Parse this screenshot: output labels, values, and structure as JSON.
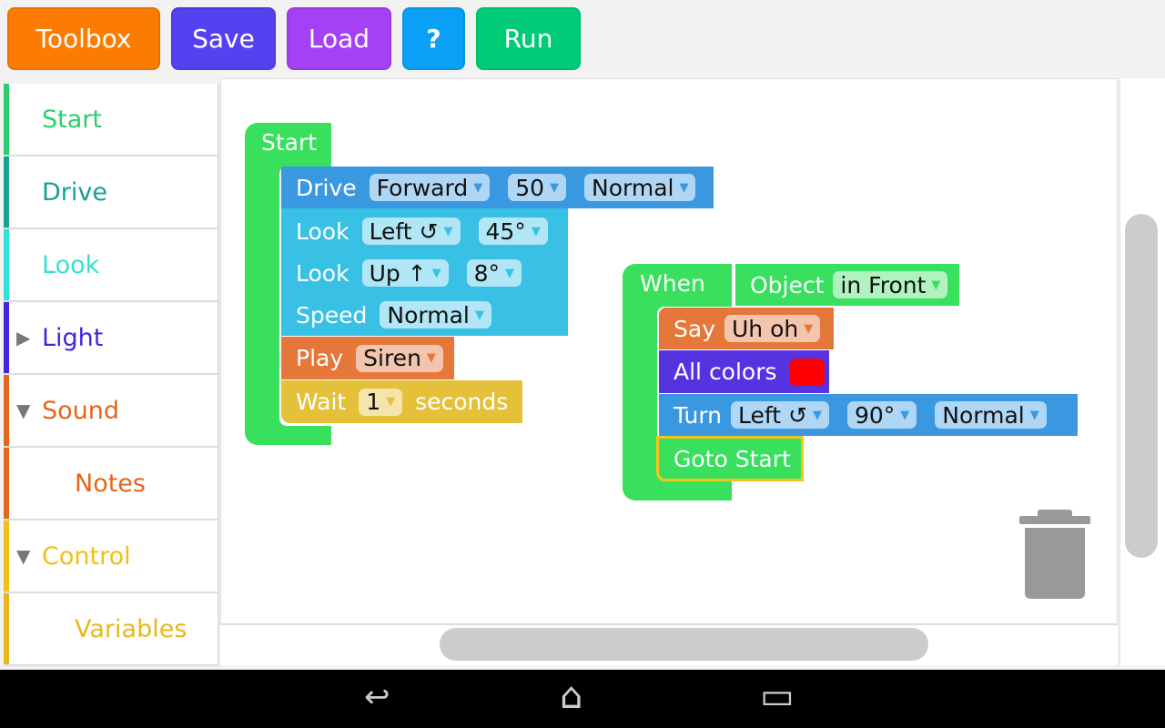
{
  "toolbar": {
    "toolbox": "Toolbox",
    "save": "Save",
    "load": "Load",
    "help": "?",
    "run": "Run"
  },
  "sidebar": {
    "items": [
      {
        "label": "Start",
        "color": "#2ecc71"
      },
      {
        "label": "Drive",
        "color": "#16a190"
      },
      {
        "label": "Look",
        "color": "#2ee3d5"
      },
      {
        "label": "Light",
        "color": "#4424de"
      },
      {
        "label": "Sound",
        "color": "#e3661c"
      },
      {
        "label": "Notes",
        "color": "#e3661c"
      },
      {
        "label": "Control",
        "color": "#f0c01a"
      },
      {
        "label": "Variables",
        "color": "#e8b81a"
      }
    ]
  },
  "program1": {
    "start": "Start",
    "drive": {
      "label": "Drive",
      "dir": "Forward",
      "dist": "50",
      "speed": "Normal"
    },
    "look1": {
      "label": "Look",
      "dir": "Left ↺",
      "angle": "45°"
    },
    "look2": {
      "label": "Look",
      "dir": "Up ↑",
      "angle": "8°"
    },
    "speed": {
      "label": "Speed",
      "value": "Normal"
    },
    "play": {
      "label": "Play",
      "value": "Siren"
    },
    "wait": {
      "label": "Wait",
      "value": "1",
      "unit": "seconds"
    }
  },
  "program2": {
    "when": "When",
    "object": {
      "label": "Object",
      "value": "in Front"
    },
    "say": {
      "label": "Say",
      "value": "Uh oh"
    },
    "colors": {
      "label": "All colors",
      "color": "#ff0000"
    },
    "turn": {
      "label": "Turn",
      "dir": "Left ↺",
      "angle": "90°",
      "speed": "Normal"
    },
    "goto": "Goto Start"
  },
  "dropdown_arrow": "▼",
  "nav": {
    "back": "↩",
    "home": "⌂",
    "recents": "▭"
  }
}
